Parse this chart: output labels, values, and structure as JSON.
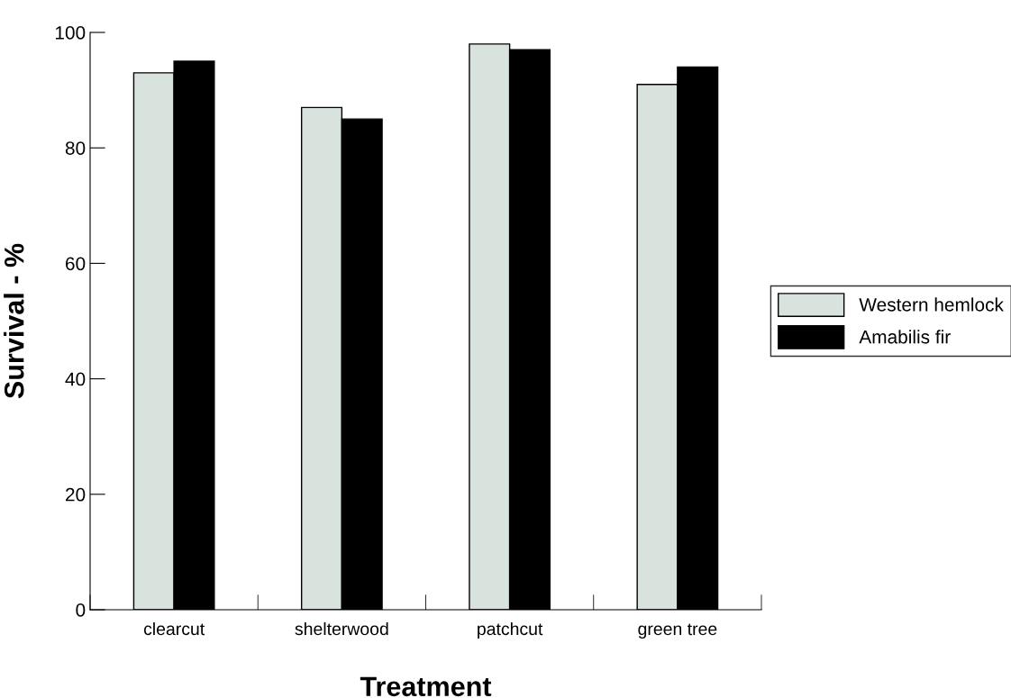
{
  "chart_data": {
    "type": "bar",
    "xlabel": "Treatment",
    "ylabel": "Survival - %",
    "categories": [
      "clearcut",
      "shelterwood",
      "patchcut",
      "green tree"
    ],
    "series": [
      {
        "name": "Western hemlock",
        "color": "#d8e3de",
        "values": [
          93,
          87,
          98,
          91
        ]
      },
      {
        "name": "Amabilis fir",
        "color": "#000000",
        "values": [
          95,
          85,
          97,
          94
        ]
      }
    ],
    "ylim": [
      0,
      100
    ],
    "yticks": [
      0,
      20,
      40,
      60,
      80,
      100
    ],
    "grid": false,
    "legend": "right"
  }
}
